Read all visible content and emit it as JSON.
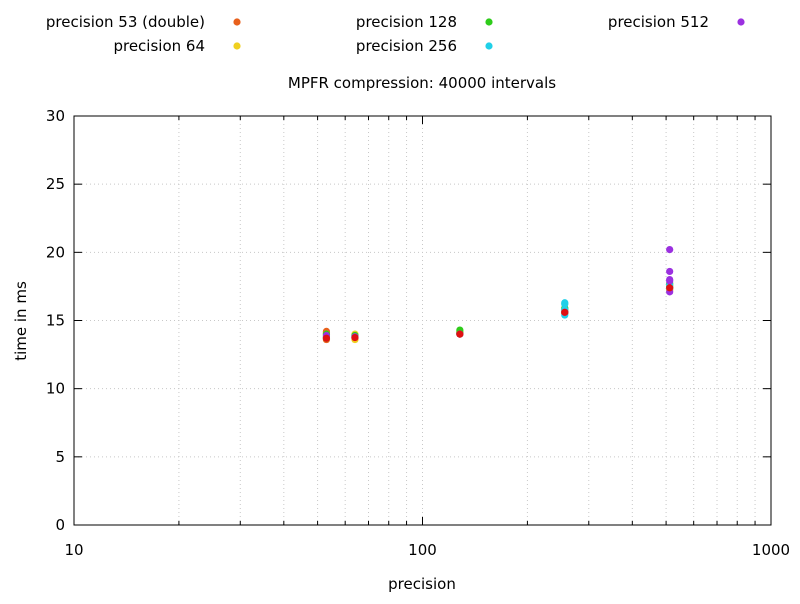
{
  "chart_data": {
    "type": "scatter",
    "title": "MPFR compression: 40000 intervals",
    "xlabel": "precision",
    "ylabel": "time in ms",
    "xscale": "log",
    "xlim": [
      10,
      1000
    ],
    "ylim": [
      0,
      30
    ],
    "xticks": [
      10,
      100,
      1000
    ],
    "xtick_labels": [
      "10",
      "100",
      "1000"
    ],
    "yticks": [
      0,
      5,
      10,
      15,
      20,
      25,
      30
    ],
    "ytick_labels": [
      "0",
      "5",
      "10",
      "15",
      "20",
      "25",
      "30"
    ],
    "grid": true,
    "legend_position": "top",
    "series": [
      {
        "name": "precision 53 (double)",
        "color": "#e8601c",
        "points": [
          {
            "x": 53,
            "y": 13.6
          },
          {
            "x": 53,
            "y": 13.8
          },
          {
            "x": 53,
            "y": 14.1
          },
          {
            "x": 53,
            "y": 14.2
          },
          {
            "x": 64,
            "y": 13.7
          },
          {
            "x": 64,
            "y": 13.9
          },
          {
            "x": 128,
            "y": 14.0
          },
          {
            "x": 128,
            "y": 14.1
          },
          {
            "x": 256,
            "y": 15.6
          },
          {
            "x": 256,
            "y": 15.7
          },
          {
            "x": 512,
            "y": 17.3
          },
          {
            "x": 512,
            "y": 17.5
          }
        ]
      },
      {
        "name": "precision 64",
        "color": "#f0d020",
        "points": [
          {
            "x": 53,
            "y": 13.9
          },
          {
            "x": 53,
            "y": 14.0
          },
          {
            "x": 64,
            "y": 13.6
          },
          {
            "x": 64,
            "y": 14.0
          },
          {
            "x": 128,
            "y": 14.0
          },
          {
            "x": 128,
            "y": 14.2
          },
          {
            "x": 256,
            "y": 15.5
          },
          {
            "x": 256,
            "y": 15.8
          },
          {
            "x": 512,
            "y": 17.2
          },
          {
            "x": 512,
            "y": 17.6
          }
        ]
      },
      {
        "name": "precision 128",
        "color": "#2ecc1a",
        "points": [
          {
            "x": 53,
            "y": 13.7
          },
          {
            "x": 53,
            "y": 14.0
          },
          {
            "x": 64,
            "y": 13.8
          },
          {
            "x": 64,
            "y": 13.9
          },
          {
            "x": 128,
            "y": 14.1
          },
          {
            "x": 128,
            "y": 14.3
          },
          {
            "x": 256,
            "y": 15.6
          },
          {
            "x": 256,
            "y": 15.9
          },
          {
            "x": 512,
            "y": 17.4
          },
          {
            "x": 512,
            "y": 17.7
          }
        ]
      },
      {
        "name": "precision 256",
        "color": "#20d0e8",
        "points": [
          {
            "x": 53,
            "y": 13.8
          },
          {
            "x": 64,
            "y": 13.8
          },
          {
            "x": 128,
            "y": 14.0
          },
          {
            "x": 256,
            "y": 15.4
          },
          {
            "x": 256,
            "y": 15.8
          },
          {
            "x": 256,
            "y": 16.2
          },
          {
            "x": 256,
            "y": 16.3
          },
          {
            "x": 512,
            "y": 17.4
          },
          {
            "x": 512,
            "y": 17.6
          }
        ]
      },
      {
        "name": "precision 512",
        "color": "#9b30e0",
        "points": [
          {
            "x": 53,
            "y": 13.9
          },
          {
            "x": 64,
            "y": 13.8
          },
          {
            "x": 128,
            "y": 14.0
          },
          {
            "x": 256,
            "y": 15.6
          },
          {
            "x": 512,
            "y": 17.1
          },
          {
            "x": 512,
            "y": 17.9
          },
          {
            "x": 512,
            "y": 18.0
          },
          {
            "x": 512,
            "y": 18.6
          },
          {
            "x": 512,
            "y": 20.2
          }
        ]
      },
      {
        "name": "",
        "color": "#e01010",
        "points": [
          {
            "x": 53,
            "y": 13.7
          },
          {
            "x": 64,
            "y": 13.75
          },
          {
            "x": 128,
            "y": 14.0
          },
          {
            "x": 256,
            "y": 15.6
          },
          {
            "x": 512,
            "y": 17.4
          }
        ]
      }
    ]
  }
}
